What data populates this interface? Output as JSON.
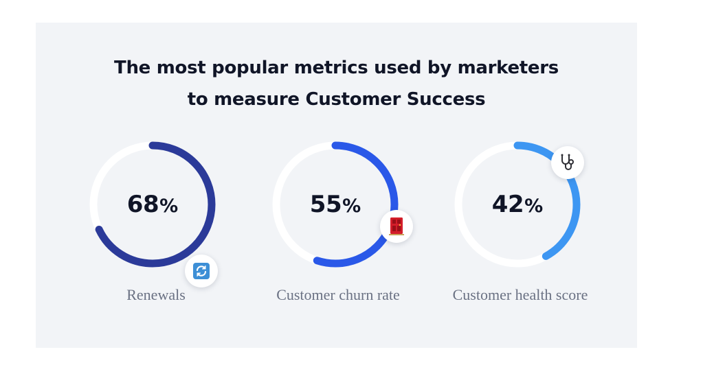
{
  "title": {
    "line1": "The most popular metrics used by marketers",
    "line2": "to measure Customer Success"
  },
  "chart_data": {
    "type": "donut",
    "unit": "%",
    "categories": [
      "Renewals",
      "Customer churn rate",
      "Customer health score"
    ],
    "values": [
      68,
      55,
      42
    ],
    "items": [
      {
        "label": "Renewals",
        "value": 68,
        "value_text": "68",
        "color": "#2b3a99",
        "icon": "refresh-icon"
      },
      {
        "label": "Customer churn rate",
        "value": 55,
        "value_text": "55",
        "color": "#2a58e8",
        "icon": "door-icon"
      },
      {
        "label": "Customer health score",
        "value": 42,
        "value_text": "42",
        "color": "#3d96f2",
        "icon": "stethoscope-icon"
      }
    ]
  },
  "colors": {
    "track": "#ffffff",
    "background": "#f2f4f7",
    "text": "#101527",
    "label": "#6a7183"
  }
}
